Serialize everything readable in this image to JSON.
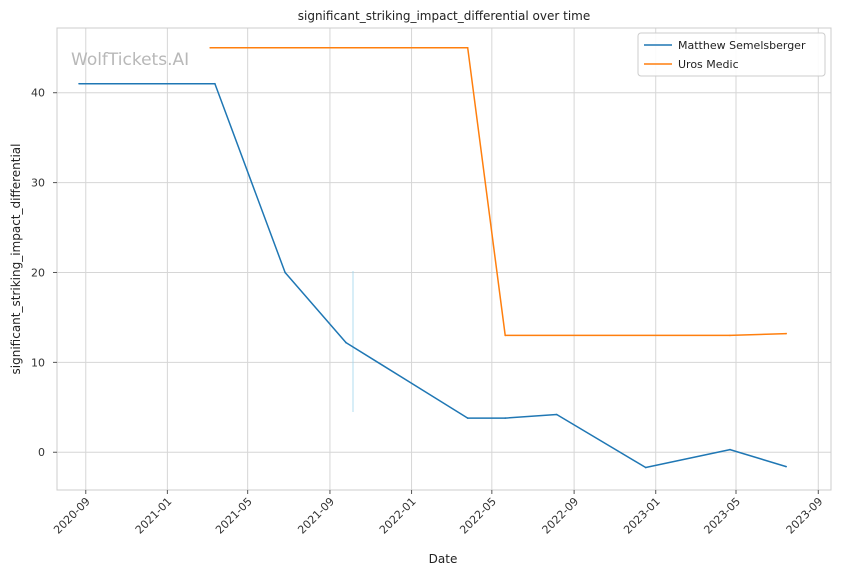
{
  "watermark": "WolfTickets.AI",
  "chart_data": {
    "type": "line",
    "title": "significant_striking_impact_differential over time",
    "xlabel": "Date",
    "ylabel": "significant_striking_impact_differential",
    "x_ticks": [
      "2020-09",
      "2021-01",
      "2021-05",
      "2021-09",
      "2022-01",
      "2022-05",
      "2022-09",
      "2023-01",
      "2023-05",
      "2023-09"
    ],
    "y_ticks": [
      0,
      10,
      20,
      30,
      40
    ],
    "xlim": [
      "2020-07-20",
      "2023-09-20"
    ],
    "ylim": [
      -4.2,
      47.2
    ],
    "grid": true,
    "legend_position": "top-right",
    "series": [
      {
        "name": "Matthew Semelsberger",
        "color": "#1f77b4",
        "points": [
          {
            "x": "2020-08-22",
            "y": 41.0
          },
          {
            "x": "2021-03-13",
            "y": 41.0
          },
          {
            "x": "2021-06-26",
            "y": 20.0
          },
          {
            "x": "2021-09-25",
            "y": 12.2
          },
          {
            "x": "2022-03-26",
            "y": 3.8
          },
          {
            "x": "2022-05-21",
            "y": 3.8
          },
          {
            "x": "2022-08-06",
            "y": 4.2
          },
          {
            "x": "2022-12-17",
            "y": -1.7
          },
          {
            "x": "2023-04-22",
            "y": 0.3
          },
          {
            "x": "2023-07-15",
            "y": -1.6
          }
        ]
      },
      {
        "name": "Uros Medic",
        "color": "#ff7f0e",
        "points": [
          {
            "x": "2021-03-06",
            "y": 45.0
          },
          {
            "x": "2022-03-26",
            "y": 45.0
          },
          {
            "x": "2022-05-21",
            "y": 13.0
          },
          {
            "x": "2023-04-22",
            "y": 13.0
          },
          {
            "x": "2023-07-15",
            "y": 13.2
          }
        ]
      }
    ]
  }
}
